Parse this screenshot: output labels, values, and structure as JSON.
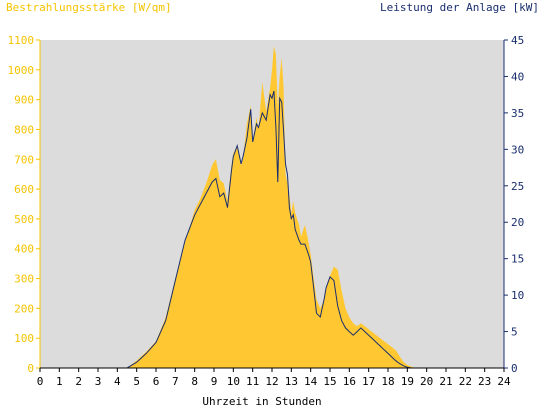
{
  "chart_data": {
    "type": "area",
    "title_left": "Bestrahlungsstärke [W/qm]",
    "title_right": "Leistung der Anlage [kW]",
    "xlabel": "Uhrzeit in Stunden",
    "xlim": [
      0,
      24
    ],
    "ylim_left": [
      0,
      1100
    ],
    "ylim_right": [
      0,
      45
    ],
    "x_ticks": [
      "0",
      "1",
      "2",
      "3",
      "4",
      "5",
      "6",
      "7",
      "8",
      "9",
      "10",
      "11",
      "12",
      "13",
      "14",
      "15",
      "16",
      "17",
      "18",
      "19",
      "20",
      "21",
      "22",
      "23",
      "24"
    ],
    "y_ticks_left": [
      "0",
      "100",
      "200",
      "300",
      "400",
      "500",
      "600",
      "700",
      "800",
      "900",
      "1000",
      "1100"
    ],
    "y_ticks_right": [
      "0",
      "5",
      "10",
      "15",
      "20",
      "25",
      "30",
      "35",
      "40",
      "45"
    ],
    "grid": false,
    "colors": {
      "plot_bg": "#dcdcdc",
      "irradiance_fill": "#ffc832",
      "power_line": "#1a2e6e",
      "axis_left": "#f5c400",
      "axis_right": "#1a2e6e"
    },
    "series": [
      {
        "name": "Bestrahlungsstärke [W/qm]",
        "axis": "left",
        "x": [
          0,
          4.5,
          5.0,
          5.5,
          6.0,
          6.5,
          7.0,
          7.5,
          8.0,
          8.3,
          8.6,
          8.9,
          9.1,
          9.3,
          9.5,
          9.7,
          9.9,
          10.0,
          10.2,
          10.4,
          10.5,
          10.7,
          10.9,
          11.0,
          11.2,
          11.3,
          11.5,
          11.7,
          11.9,
          12.0,
          12.1,
          12.2,
          12.3,
          12.4,
          12.5,
          12.6,
          12.7,
          12.8,
          12.9,
          13.0,
          13.1,
          13.2,
          13.4,
          13.5,
          13.7,
          13.9,
          14.0,
          14.2,
          14.3,
          14.5,
          14.7,
          14.8,
          15.0,
          15.2,
          15.4,
          15.6,
          15.8,
          16.0,
          16.2,
          16.4,
          16.6,
          16.8,
          17.0,
          17.2,
          17.4,
          17.6,
          17.8,
          18.0,
          18.2,
          18.4,
          18.6,
          18.8,
          19.0,
          19.2,
          19.4,
          19.6,
          19.8,
          20.0,
          24
        ],
        "values": [
          0,
          0,
          25,
          55,
          90,
          170,
          300,
          420,
          530,
          570,
          620,
          680,
          700,
          630,
          620,
          560,
          680,
          720,
          740,
          680,
          700,
          820,
          880,
          760,
          840,
          800,
          960,
          860,
          940,
          1000,
          1080,
          1050,
          870,
          980,
          1040,
          940,
          650,
          620,
          580,
          520,
          560,
          520,
          480,
          440,
          480,
          420,
          380,
          280,
          230,
          200,
          230,
          270,
          310,
          340,
          330,
          260,
          200,
          170,
          150,
          140,
          150,
          140,
          130,
          120,
          110,
          100,
          90,
          80,
          70,
          60,
          40,
          20,
          10,
          5,
          0,
          0,
          0,
          0,
          0
        ]
      },
      {
        "name": "Leistung der Anlage [kW]",
        "axis": "right",
        "x": [
          0,
          4.5,
          5.0,
          5.5,
          6.0,
          6.5,
          7.0,
          7.5,
          8.0,
          8.3,
          8.6,
          8.9,
          9.1,
          9.3,
          9.5,
          9.7,
          9.9,
          10.0,
          10.2,
          10.4,
          10.5,
          10.7,
          10.9,
          11.0,
          11.2,
          11.3,
          11.5,
          11.7,
          11.9,
          12.0,
          12.1,
          12.2,
          12.3,
          12.4,
          12.5,
          12.6,
          12.7,
          12.8,
          12.9,
          13.0,
          13.1,
          13.2,
          13.4,
          13.5,
          13.7,
          13.9,
          14.0,
          14.2,
          14.3,
          14.5,
          14.7,
          14.8,
          15.0,
          15.2,
          15.4,
          15.6,
          15.8,
          16.0,
          16.2,
          16.4,
          16.6,
          16.8,
          17.0,
          17.2,
          17.4,
          17.6,
          17.8,
          18.0,
          18.2,
          18.4,
          18.6,
          18.8,
          19.0,
          19.2,
          19.4,
          19.6,
          19.8,
          20.0,
          24
        ],
        "values": [
          0,
          0,
          0.8,
          2.0,
          3.5,
          6.5,
          12.0,
          17.5,
          21.0,
          22.5,
          24.0,
          25.5,
          26.0,
          23.5,
          24.0,
          22.0,
          27.0,
          29.0,
          30.5,
          28.0,
          29.0,
          31.5,
          35.5,
          31.0,
          33.5,
          33.0,
          35.0,
          34.0,
          37.5,
          37.0,
          38.0,
          33.0,
          25.5,
          37.0,
          36.5,
          32.5,
          28.0,
          26.5,
          22.0,
          20.5,
          21.0,
          19.0,
          17.5,
          17.0,
          17.0,
          15.5,
          14.5,
          10.0,
          7.5,
          7.0,
          9.5,
          11.0,
          12.5,
          12.0,
          8.5,
          6.5,
          5.5,
          5.0,
          4.5,
          5.0,
          5.5,
          5.0,
          4.5,
          4.0,
          3.5,
          3.0,
          2.5,
          2.0,
          1.5,
          1.0,
          0.6,
          0.3,
          0.1,
          0,
          0,
          0,
          0,
          0,
          0
        ]
      }
    ]
  }
}
